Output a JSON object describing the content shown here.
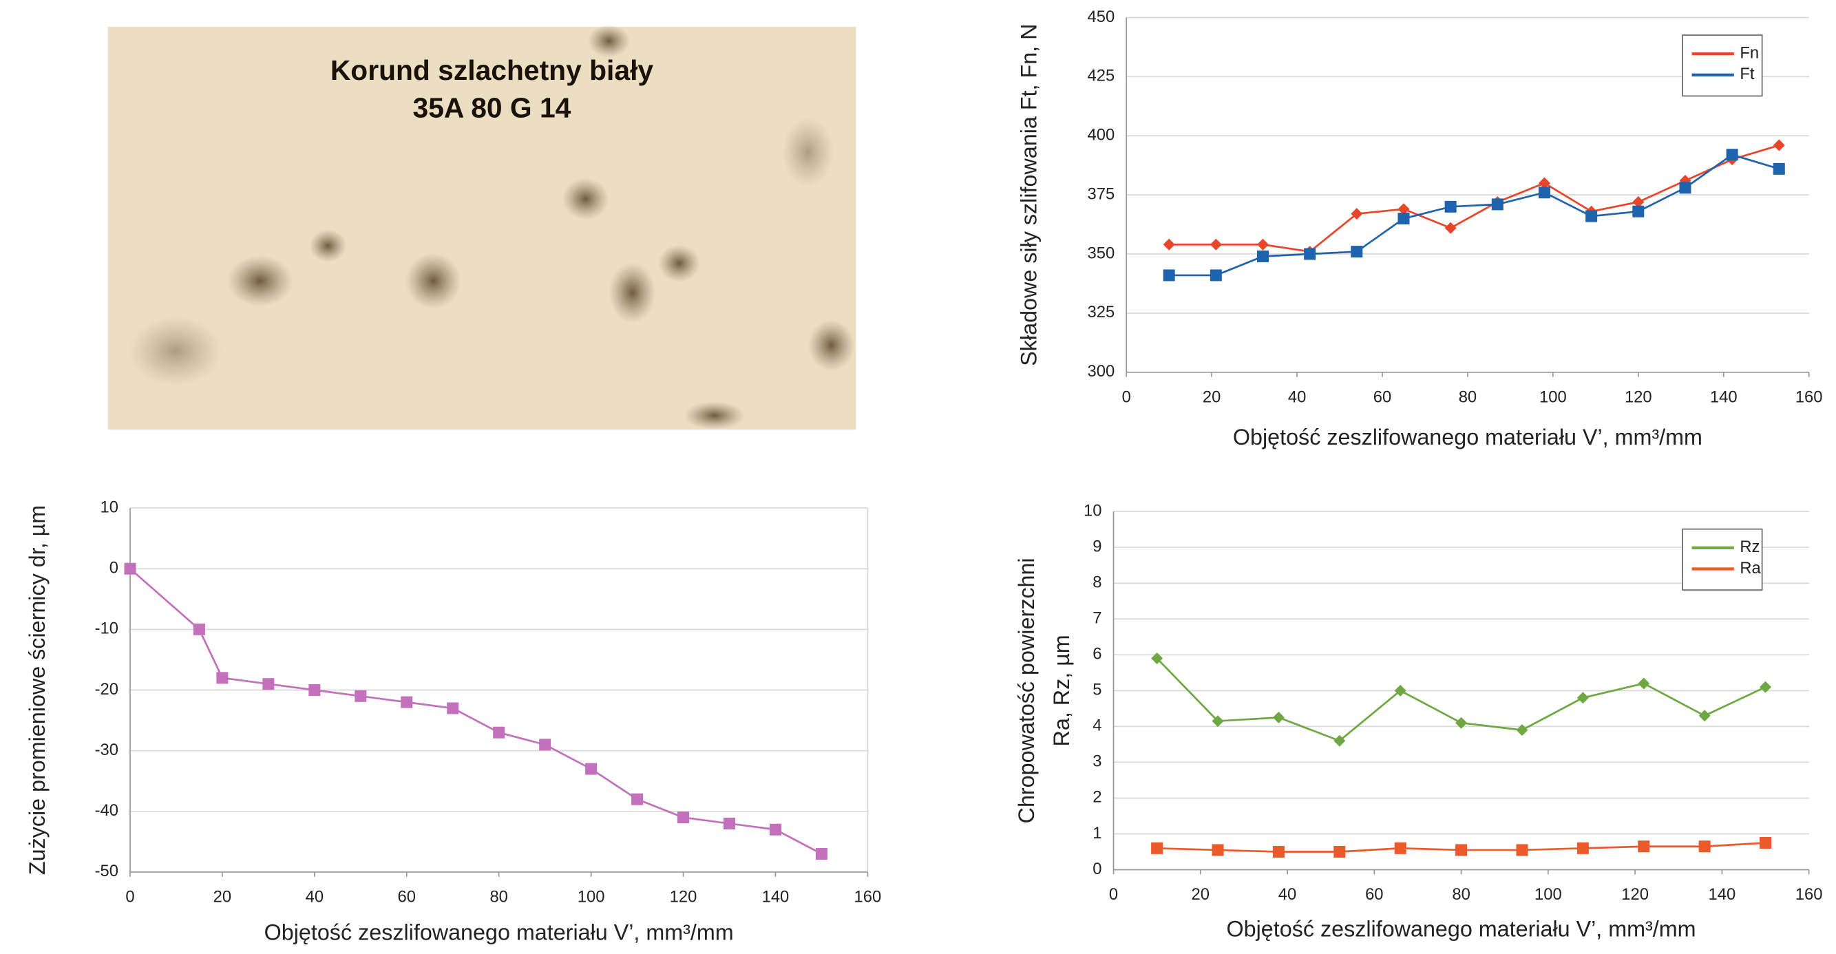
{
  "image_labels": [
    "Korund szlachetny biały",
    "35A 80 G 14"
  ],
  "chart_data": [
    {
      "type": "line",
      "ylabel": [
        "Składowe siły szlifowania Ft, Fn, N"
      ],
      "xlabel": "Objętość zeszlifowanego materiału V’, mm³/mm",
      "x": [
        10,
        21,
        32,
        43,
        54,
        65,
        76,
        87,
        98,
        109,
        120,
        131,
        142,
        153
      ],
      "series": [
        {
          "name": "Fn",
          "color": "#e8462a",
          "marker": "diamond",
          "values": [
            354,
            354,
            354,
            351,
            367,
            369,
            361,
            372,
            380,
            368,
            372,
            381,
            390,
            396
          ]
        },
        {
          "name": "Ft",
          "color": "#1f63ad",
          "marker": "square",
          "values": [
            341,
            341,
            349,
            350,
            351,
            365,
            370,
            371,
            376,
            366,
            368,
            378,
            392,
            386
          ]
        }
      ],
      "xlim": [
        0,
        160
      ],
      "xticks": [
        0,
        20,
        40,
        60,
        80,
        100,
        120,
        140,
        160
      ],
      "ylim": [
        300,
        450
      ],
      "yticks": [
        300,
        325,
        350,
        375,
        400,
        425,
        450
      ],
      "grid": true,
      "legend": "upper right"
    },
    {
      "type": "line",
      "ylabel": [
        "Zużycie promieniowe ściernicy dr, µm"
      ],
      "xlabel": "Objętość zeszlifowanego materiału V’, mm³/mm",
      "x": [
        0,
        15,
        20,
        30,
        40,
        50,
        60,
        70,
        80,
        90,
        100,
        110,
        120,
        130,
        140,
        150
      ],
      "series": [
        {
          "color": "#c471bd",
          "marker": "square",
          "values": [
            0,
            -10,
            -18,
            -19,
            -20,
            -21,
            -22,
            -23,
            -27,
            -29,
            -33,
            -38,
            -41,
            -42,
            -43,
            -47
          ]
        }
      ],
      "xlim": [
        0,
        160
      ],
      "xticks": [
        0,
        20,
        40,
        60,
        80,
        100,
        120,
        140,
        160
      ],
      "ylim": [
        -50,
        10
      ],
      "yticks": [
        -50,
        -40,
        -30,
        -20,
        -10,
        0,
        10
      ],
      "grid": true
    },
    {
      "type": "line",
      "ylabel": [
        "Chropowatość powierzchni",
        "Ra, Rz, µm"
      ],
      "xlabel": "Objętość zeszlifowanego materiału V’, mm³/mm",
      "x": [
        10,
        24,
        38,
        52,
        66,
        80,
        94,
        108,
        122,
        136,
        150
      ],
      "series": [
        {
          "name": "Rz",
          "color": "#6fa843",
          "marker": "diamond",
          "values": [
            5.9,
            4.15,
            4.25,
            3.6,
            5.0,
            4.1,
            3.9,
            4.8,
            5.2,
            4.3,
            5.1
          ]
        },
        {
          "name": "Ra",
          "color": "#ea5a2a",
          "marker": "square",
          "values": [
            0.6,
            0.55,
            0.5,
            0.5,
            0.6,
            0.55,
            0.55,
            0.6,
            0.65,
            0.65,
            0.75
          ]
        }
      ],
      "xlim": [
        0,
        160
      ],
      "xticks": [
        0,
        20,
        40,
        60,
        80,
        100,
        120,
        140,
        160
      ],
      "ylim": [
        0,
        10
      ],
      "yticks": [
        0,
        1,
        2,
        3,
        4,
        5,
        6,
        7,
        8,
        9,
        10
      ],
      "grid": true,
      "legend": "upper right"
    }
  ]
}
